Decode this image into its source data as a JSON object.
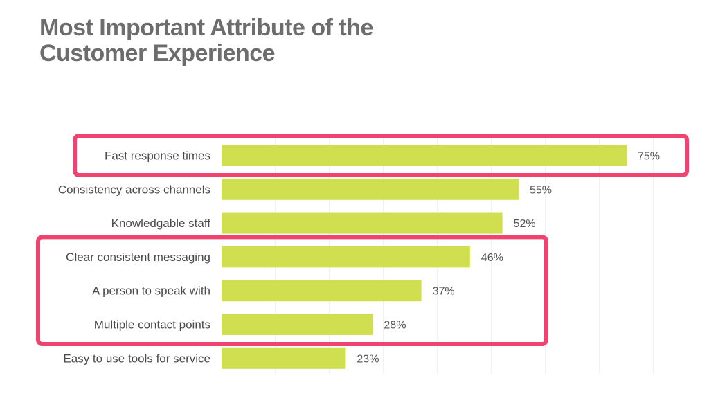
{
  "title_lines": [
    "Most Important Attribute of the",
    "Customer Experience"
  ],
  "colors": {
    "bar": "#cfdf4f",
    "highlight": "#f0436f",
    "grid": "#e6e6e6",
    "title": "#6d6d6d"
  },
  "chart_data": {
    "type": "bar",
    "orientation": "horizontal",
    "title": "Most Important Attribute of the Customer Experience",
    "categories": [
      "Fast response times",
      "Consistency across channels",
      "Knowledgable staff",
      "Clear consistent messaging",
      "A person to speak with",
      "Multiple contact points",
      "Easy to use tools for service"
    ],
    "values": [
      75,
      55,
      52,
      46,
      37,
      28,
      23
    ],
    "value_labels": [
      "75%",
      "55%",
      "52%",
      "46%",
      "37%",
      "28%",
      "23%"
    ],
    "xlim": [
      0,
      80
    ],
    "grid": true,
    "highlight_groups": [
      [
        0
      ],
      [
        3,
        4,
        5
      ]
    ]
  }
}
